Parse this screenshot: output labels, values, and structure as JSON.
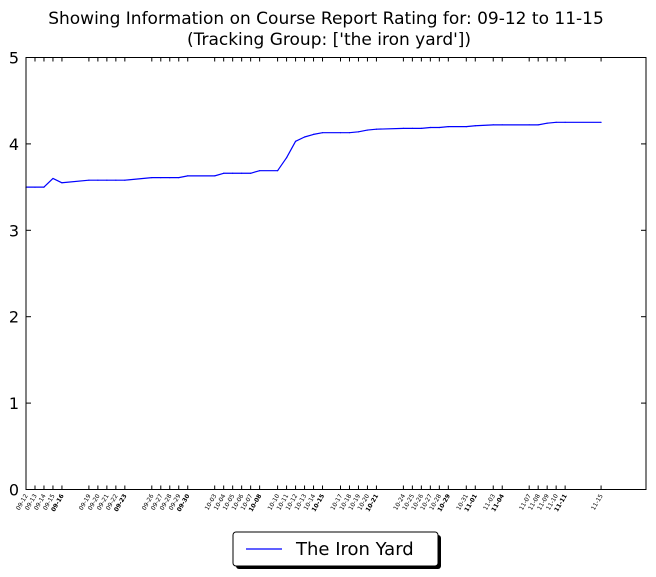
{
  "chart_data": {
    "type": "line",
    "title": "Showing Information on Course Report Rating for: 09-12 to 11-15",
    "subtitle": "(Tracking Group: ['the iron yard'])",
    "xlabel": "",
    "ylabel": "",
    "ylim": [
      0,
      5
    ],
    "yticks": [
      0,
      1,
      2,
      3,
      4,
      5
    ],
    "grid": false,
    "legend_position": "bottom-center",
    "x_range": [
      "09-12",
      "11-20"
    ],
    "x_ticks": [
      {
        "label": "09-12",
        "bold": false
      },
      {
        "label": "09-13",
        "bold": false
      },
      {
        "label": "09-14",
        "bold": false
      },
      {
        "label": "09-15",
        "bold": false
      },
      {
        "label": "09-16",
        "bold": true
      },
      {
        "label": "09-19",
        "bold": false
      },
      {
        "label": "09-20",
        "bold": false
      },
      {
        "label": "09-21",
        "bold": false
      },
      {
        "label": "09-22",
        "bold": false
      },
      {
        "label": "09-23",
        "bold": true
      },
      {
        "label": "09-26",
        "bold": false
      },
      {
        "label": "09-27",
        "bold": false
      },
      {
        "label": "09-28",
        "bold": false
      },
      {
        "label": "09-29",
        "bold": false
      },
      {
        "label": "09-30",
        "bold": true
      },
      {
        "label": "10-03",
        "bold": false
      },
      {
        "label": "10-04",
        "bold": false
      },
      {
        "label": "10-05",
        "bold": false
      },
      {
        "label": "10-06",
        "bold": false
      },
      {
        "label": "10-07",
        "bold": false
      },
      {
        "label": "10-08",
        "bold": true
      },
      {
        "label": "10-10",
        "bold": false
      },
      {
        "label": "10-11",
        "bold": false
      },
      {
        "label": "10-12",
        "bold": false
      },
      {
        "label": "10-13",
        "bold": false
      },
      {
        "label": "10-14",
        "bold": false
      },
      {
        "label": "10-15",
        "bold": true
      },
      {
        "label": "10-17",
        "bold": false
      },
      {
        "label": "10-18",
        "bold": false
      },
      {
        "label": "10-19",
        "bold": false
      },
      {
        "label": "10-20",
        "bold": false
      },
      {
        "label": "10-21",
        "bold": true
      },
      {
        "label": "10-24",
        "bold": false
      },
      {
        "label": "10-25",
        "bold": false
      },
      {
        "label": "10-26",
        "bold": false
      },
      {
        "label": "10-27",
        "bold": false
      },
      {
        "label": "10-28",
        "bold": false
      },
      {
        "label": "10-29",
        "bold": true
      },
      {
        "label": "10-31",
        "bold": false
      },
      {
        "label": "11-01",
        "bold": true
      },
      {
        "label": "11-03",
        "bold": false
      },
      {
        "label": "11-04",
        "bold": true
      },
      {
        "label": "11-07",
        "bold": false
      },
      {
        "label": "11-08",
        "bold": false
      },
      {
        "label": "11-09",
        "bold": false
      },
      {
        "label": "11-10",
        "bold": false
      },
      {
        "label": "11-11",
        "bold": true
      },
      {
        "label": "11-15",
        "bold": false
      }
    ],
    "series": [
      {
        "name": "The Iron Yard",
        "color": "#0000ff",
        "points": [
          {
            "x": "09-12",
            "y": 3.5
          },
          {
            "x": "09-13",
            "y": 3.5
          },
          {
            "x": "09-14",
            "y": 3.5
          },
          {
            "x": "09-15",
            "y": 3.6
          },
          {
            "x": "09-16",
            "y": 3.55
          },
          {
            "x": "09-19",
            "y": 3.58
          },
          {
            "x": "09-20",
            "y": 3.58
          },
          {
            "x": "09-21",
            "y": 3.58
          },
          {
            "x": "09-22",
            "y": 3.58
          },
          {
            "x": "09-23",
            "y": 3.58
          },
          {
            "x": "09-26",
            "y": 3.61
          },
          {
            "x": "09-27",
            "y": 3.61
          },
          {
            "x": "09-28",
            "y": 3.61
          },
          {
            "x": "09-29",
            "y": 3.61
          },
          {
            "x": "09-30",
            "y": 3.63
          },
          {
            "x": "10-03",
            "y": 3.63
          },
          {
            "x": "10-04",
            "y": 3.66
          },
          {
            "x": "10-05",
            "y": 3.66
          },
          {
            "x": "10-06",
            "y": 3.66
          },
          {
            "x": "10-07",
            "y": 3.66
          },
          {
            "x": "10-08",
            "y": 3.69
          },
          {
            "x": "10-10",
            "y": 3.69
          },
          {
            "x": "10-11",
            "y": 3.84
          },
          {
            "x": "10-12",
            "y": 4.03
          },
          {
            "x": "10-13",
            "y": 4.08
          },
          {
            "x": "10-14",
            "y": 4.11
          },
          {
            "x": "10-15",
            "y": 4.13
          },
          {
            "x": "10-17",
            "y": 4.13
          },
          {
            "x": "10-18",
            "y": 4.13
          },
          {
            "x": "10-19",
            "y": 4.14
          },
          {
            "x": "10-20",
            "y": 4.16
          },
          {
            "x": "10-21",
            "y": 4.17
          },
          {
            "x": "10-24",
            "y": 4.18
          },
          {
            "x": "10-25",
            "y": 4.18
          },
          {
            "x": "10-26",
            "y": 4.18
          },
          {
            "x": "10-27",
            "y": 4.19
          },
          {
            "x": "10-28",
            "y": 4.19
          },
          {
            "x": "10-29",
            "y": 4.2
          },
          {
            "x": "10-31",
            "y": 4.2
          },
          {
            "x": "11-01",
            "y": 4.21
          },
          {
            "x": "11-03",
            "y": 4.22
          },
          {
            "x": "11-04",
            "y": 4.22
          },
          {
            "x": "11-07",
            "y": 4.22
          },
          {
            "x": "11-08",
            "y": 4.22
          },
          {
            "x": "11-09",
            "y": 4.24
          },
          {
            "x": "11-10",
            "y": 4.25
          },
          {
            "x": "11-11",
            "y": 4.25
          },
          {
            "x": "11-15",
            "y": 4.25
          }
        ]
      }
    ]
  }
}
